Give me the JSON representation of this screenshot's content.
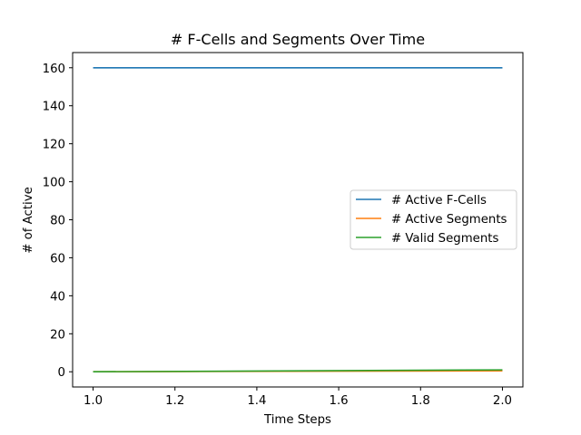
{
  "chart_data": {
    "type": "line",
    "title": "# F-Cells and Segments Over Time",
    "xlabel": "Time Steps",
    "ylabel": "# of Active",
    "xlim": [
      0.95,
      2.05
    ],
    "ylim": [
      -8,
      168
    ],
    "xticks": [
      1.0,
      1.2,
      1.4,
      1.6,
      1.8,
      2.0
    ],
    "xtick_labels": [
      "1.0",
      "1.2",
      "1.4",
      "1.6",
      "1.8",
      "2.0"
    ],
    "yticks": [
      0,
      20,
      40,
      60,
      80,
      100,
      120,
      140,
      160
    ],
    "ytick_labels": [
      "0",
      "20",
      "40",
      "60",
      "80",
      "100",
      "120",
      "140",
      "160"
    ],
    "grid": false,
    "legend_position": "center-right",
    "series": [
      {
        "name": "# Active F-Cells",
        "color": "#1f77b4",
        "x": [
          1,
          2
        ],
        "y": [
          160,
          160
        ]
      },
      {
        "name": "# Active Segments",
        "color": "#ff7f0e",
        "x": [
          1,
          2
        ],
        "y": [
          0,
          0.5
        ]
      },
      {
        "name": "# Valid Segments",
        "color": "#2ca02c",
        "x": [
          1,
          2
        ],
        "y": [
          0,
          1
        ]
      }
    ]
  }
}
